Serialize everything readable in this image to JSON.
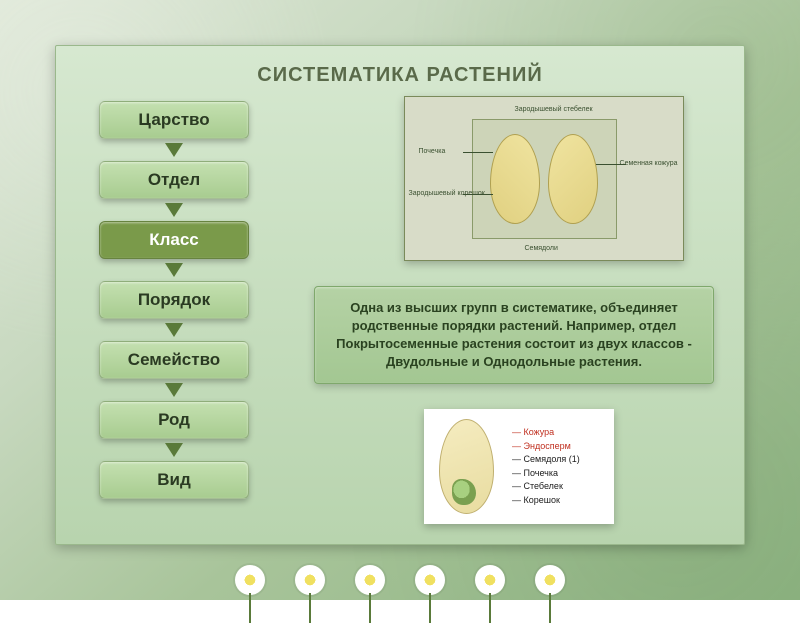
{
  "title": {
    "text": "СИСТЕМАТИКА РАСТЕНИЙ",
    "color": "#5a6a4a",
    "fontsize": 20
  },
  "panel": {
    "bg_top": "#d6e8d0",
    "bg_bottom": "#b8d4ae"
  },
  "hierarchy": {
    "box_fontsize": 17,
    "box_text_color": "#2a3a22",
    "arrow_color": "#5a7a3a",
    "highlight_bg": "#7a9a4a",
    "highlight_text": "#ffffff",
    "normal_bg_top": "#c4e0b0",
    "normal_bg_bottom": "#a8cc90",
    "items": [
      {
        "label": "Царство",
        "highlight": false
      },
      {
        "label": "Отдел",
        "highlight": false
      },
      {
        "label": "Класс",
        "highlight": true
      },
      {
        "label": "Порядок",
        "highlight": false
      },
      {
        "label": "Семейство",
        "highlight": false
      },
      {
        "label": "Род",
        "highlight": false
      },
      {
        "label": "Вид",
        "highlight": false
      }
    ]
  },
  "diagram1": {
    "labels": {
      "top": "Зародышевый стебелек",
      "left_top": "Почечка",
      "left_bottom": "Зародышевый корешок",
      "right": "Семенная кожура",
      "bottom": "Семядоли"
    }
  },
  "description": {
    "text": "Одна из высших групп в систематике, объединяет родственные порядки растений. Например, отдел Покрытосеменные растения состоит из двух классов - Двудольные и Однодольные растения.",
    "color": "#2a4220",
    "fontsize": 13
  },
  "diagram2": {
    "labels": [
      {
        "text": "Кожура",
        "color": "#c03020"
      },
      {
        "text": "Эндосперм",
        "color": "#c03020"
      },
      {
        "text": "Семядоля (1)",
        "color": "#202020"
      },
      {
        "text": "Почечка",
        "color": "#202020"
      },
      {
        "text": "Стебелек",
        "color": "#202020"
      },
      {
        "text": "Корешок",
        "color": "#202020"
      }
    ]
  }
}
